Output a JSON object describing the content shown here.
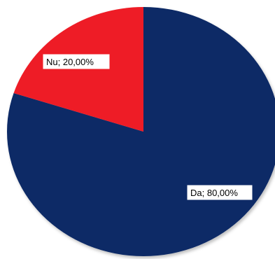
{
  "chart_data": {
    "type": "pie",
    "title": "",
    "start_angle_deg": 0,
    "direction": "clockwise",
    "slices": [
      {
        "label": "Da",
        "value": 80,
        "display": "Da; 80,00%",
        "color": "#0d2a66"
      },
      {
        "label": "Nu",
        "value": 20,
        "display": "Nu; 20,00%",
        "color": "#ee1c25"
      }
    ]
  }
}
